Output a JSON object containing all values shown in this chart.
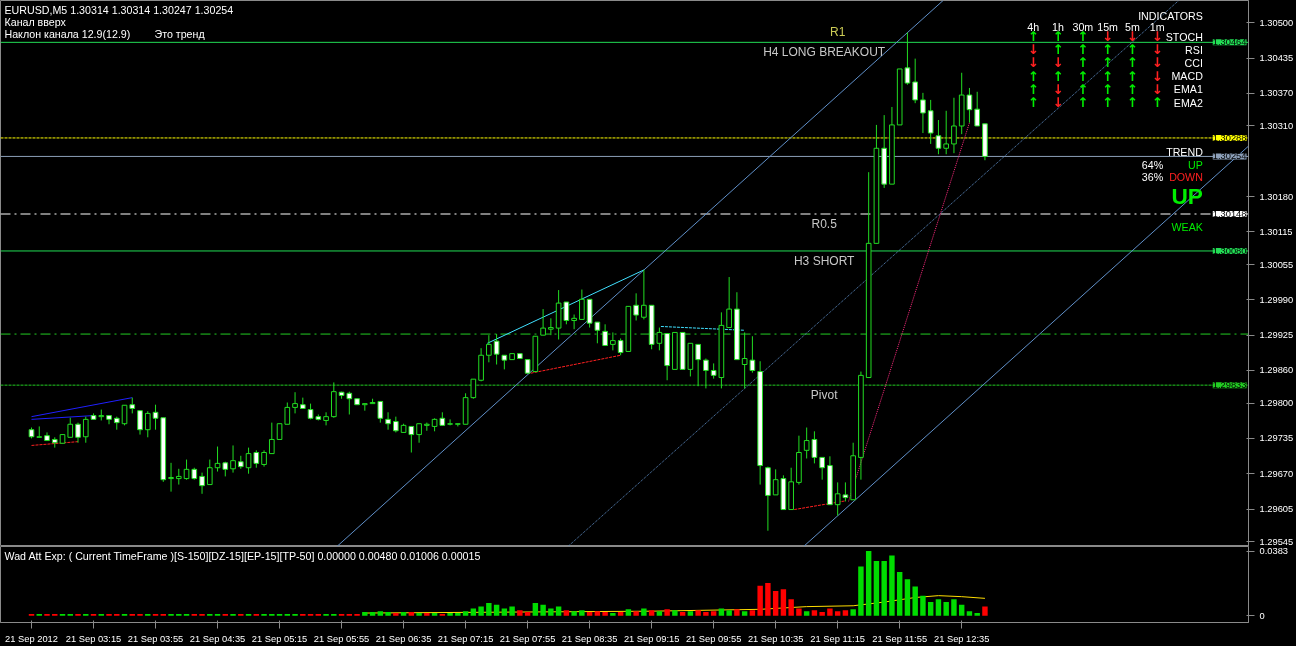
{
  "chart_data": [
    {
      "type": "candlestick",
      "title": "EURUSD,M5  1.30314 1.30314 1.30247 1.30254",
      "tick_labels": "y",
      "color": "#22dd22",
      "xlim": [
        "2012-09-21T02:15",
        "2012-09-21T15:40"
      ],
      "ylim": [
        1.29536,
        1.30541
      ],
      "yticks": [
        {
          "value": 1.305,
          "label": "1.30500"
        },
        1.30435,
        {
          "value": 1.3037,
          "label": "1.30370"
        },
        {
          "value": 1.3031,
          "label": "1.30310"
        },
        {
          "value": 1.3018,
          "label": "1.30180"
        },
        1.30115,
        1.30055,
        {
          "value": 1.2999,
          "label": "1.29990"
        },
        1.29925,
        {
          "value": 1.2986,
          "label": "1.29860"
        },
        {
          "value": 1.298,
          "label": "1.29800"
        },
        1.29735,
        {
          "value": 1.2967,
          "label": "1.29670"
        },
        1.29605,
        1.29545
      ],
      "x": [
        "2012-09-21T02:35",
        "2012-09-21T02:40",
        "2012-09-21T02:45",
        "2012-09-21T02:50",
        "2012-09-21T02:55",
        "2012-09-21T03:00",
        "2012-09-21T03:05",
        "2012-09-21T03:10",
        "2012-09-21T03:15",
        "2012-09-21T03:20",
        "2012-09-21T03:25",
        "2012-09-21T03:30",
        "2012-09-21T03:35",
        "2012-09-21T03:40",
        "2012-09-21T03:45",
        "2012-09-21T03:50",
        "2012-09-21T03:55",
        "2012-09-21T04:00",
        "2012-09-21T04:05",
        "2012-09-21T04:10",
        "2012-09-21T04:15",
        "2012-09-21T04:20",
        "2012-09-21T04:25",
        "2012-09-21T04:30",
        "2012-09-21T04:35",
        "2012-09-21T04:40",
        "2012-09-21T04:45",
        "2012-09-21T04:50",
        "2012-09-21T04:55",
        "2012-09-21T05:00",
        "2012-09-21T05:05",
        "2012-09-21T05:10",
        "2012-09-21T05:15",
        "2012-09-21T05:20",
        "2012-09-21T05:25",
        "2012-09-21T05:30",
        "2012-09-21T05:35",
        "2012-09-21T05:40",
        "2012-09-21T05:45",
        "2012-09-21T05:50",
        "2012-09-21T05:55",
        "2012-09-21T06:00",
        "2012-09-21T06:05",
        "2012-09-21T06:10",
        "2012-09-21T06:15",
        "2012-09-21T06:20",
        "2012-09-21T06:25",
        "2012-09-21T06:30",
        "2012-09-21T06:35",
        "2012-09-21T06:40",
        "2012-09-21T06:45",
        "2012-09-21T06:50",
        "2012-09-21T06:55",
        "2012-09-21T07:00",
        "2012-09-21T07:05",
        "2012-09-21T07:10",
        "2012-09-21T07:15",
        "2012-09-21T07:20",
        "2012-09-21T07:25",
        "2012-09-21T07:30",
        "2012-09-21T07:35",
        "2012-09-21T07:40",
        "2012-09-21T07:45",
        "2012-09-21T07:50",
        "2012-09-21T07:55",
        "2012-09-21T08:00",
        "2012-09-21T08:05",
        "2012-09-21T08:10",
        "2012-09-21T08:15",
        "2012-09-21T08:20",
        "2012-09-21T08:25",
        "2012-09-21T08:30",
        "2012-09-21T08:35",
        "2012-09-21T08:40",
        "2012-09-21T08:45",
        "2012-09-21T08:50",
        "2012-09-21T08:55",
        "2012-09-21T09:00",
        "2012-09-21T09:05",
        "2012-09-21T09:10",
        "2012-09-21T09:15",
        "2012-09-21T09:20",
        "2012-09-21T09:25",
        "2012-09-21T09:30",
        "2012-09-21T09:35",
        "2012-09-21T09:40",
        "2012-09-21T09:45",
        "2012-09-21T09:50",
        "2012-09-21T09:55",
        "2012-09-21T10:00",
        "2012-09-21T10:05",
        "2012-09-21T10:10",
        "2012-09-21T10:15",
        "2012-09-21T10:20",
        "2012-09-21T10:25",
        "2012-09-21T10:30",
        "2012-09-21T10:35",
        "2012-09-21T10:40",
        "2012-09-21T10:45",
        "2012-09-21T10:50",
        "2012-09-21T10:55",
        "2012-09-21T11:00",
        "2012-09-21T11:05",
        "2012-09-21T11:10",
        "2012-09-21T11:15",
        "2012-09-21T11:20",
        "2012-09-21T11:25",
        "2012-09-21T11:30",
        "2012-09-21T11:35",
        "2012-09-21T11:40",
        "2012-09-21T11:45",
        "2012-09-21T11:50",
        "2012-09-21T11:55",
        "2012-09-21T12:00",
        "2012-09-21T12:05",
        "2012-09-21T12:10",
        "2012-09-21T12:15",
        "2012-09-21T12:20",
        "2012-09-21T12:25",
        "2012-09-21T12:30",
        "2012-09-21T12:35",
        "2012-09-21T12:40",
        "2012-09-21T12:45",
        "2012-09-21T12:50"
      ],
      "ohlc": [
        [
          1.29751,
          1.29755,
          1.29735,
          1.29738
        ],
        [
          1.29737,
          1.29757,
          1.29737,
          1.29738
        ],
        [
          1.2974,
          1.29746,
          1.29731,
          1.29731
        ],
        [
          1.29733,
          1.29737,
          1.29718,
          1.29727
        ],
        [
          1.29726,
          1.29742,
          1.29726,
          1.29742
        ],
        [
          1.29737,
          1.29773,
          1.29737,
          1.29761
        ],
        [
          1.29761,
          1.29764,
          1.29727,
          1.29737
        ],
        [
          1.29738,
          1.29775,
          1.29727,
          1.2977
        ],
        [
          1.29777,
          1.29781,
          1.2977,
          1.2977
        ],
        [
          1.29775,
          1.29788,
          1.29768,
          1.29777
        ],
        [
          1.29777,
          1.29777,
          1.29761,
          1.2977
        ],
        [
          1.29772,
          1.29775,
          1.29751,
          1.29764
        ],
        [
          1.29762,
          1.29796,
          1.29759,
          1.29796
        ],
        [
          1.29797,
          1.2981,
          1.29781,
          1.2979
        ],
        [
          1.29786,
          1.29786,
          1.29742,
          1.29751
        ],
        [
          1.29751,
          1.29785,
          1.29737,
          1.29781
        ],
        [
          1.29783,
          1.29797,
          1.29751,
          1.29772
        ],
        [
          1.29773,
          1.29773,
          1.29655,
          1.29659
        ],
        [
          1.29661,
          1.2969,
          1.29637,
          1.29663
        ],
        [
          1.29661,
          1.29679,
          1.2965,
          1.29665
        ],
        [
          1.29661,
          1.29696,
          1.29659,
          1.29678
        ],
        [
          1.29678,
          1.29681,
          1.29659,
          1.29661
        ],
        [
          1.29665,
          1.29672,
          1.29633,
          1.29648
        ],
        [
          1.2965,
          1.29696,
          1.2965,
          1.29681
        ],
        [
          1.29681,
          1.2972,
          1.29674,
          1.29689
        ],
        [
          1.2969,
          1.29692,
          1.29665,
          1.29678
        ],
        [
          1.29679,
          1.29722,
          1.29672,
          1.29694
        ],
        [
          1.29692,
          1.29703,
          1.29679,
          1.29683
        ],
        [
          1.29681,
          1.29718,
          1.2967,
          1.29707
        ],
        [
          1.29709,
          1.29713,
          1.29681,
          1.29689
        ],
        [
          1.29687,
          1.29713,
          1.29683,
          1.29709
        ],
        [
          1.29707,
          1.29764,
          1.29707,
          1.29733
        ],
        [
          1.29733,
          1.29762,
          1.29733,
          1.29762
        ],
        [
          1.29761,
          1.29801,
          1.29761,
          1.29792
        ],
        [
          1.29792,
          1.2982,
          1.29781,
          1.29799
        ],
        [
          1.29797,
          1.2981,
          1.2979,
          1.2979
        ],
        [
          1.29788,
          1.29799,
          1.2977,
          1.29772
        ],
        [
          1.29775,
          1.29779,
          1.29768,
          1.2977
        ],
        [
          1.29768,
          1.29783,
          1.29759,
          1.29775
        ],
        [
          1.29775,
          1.29838,
          1.29773,
          1.29821
        ],
        [
          1.2982,
          1.29821,
          1.29808,
          1.29814
        ],
        [
          1.29818,
          1.29821,
          1.29779,
          1.29808
        ],
        [
          1.29808,
          1.29808,
          1.29797,
          1.29797
        ],
        [
          1.29797,
          1.29799,
          1.29786,
          1.29799
        ],
        [
          1.29799,
          1.29808,
          1.29799,
          1.29801
        ],
        [
          1.29803,
          1.29803,
          1.29764,
          1.29772
        ],
        [
          1.2977,
          1.29783,
          1.29751,
          1.29762
        ],
        [
          1.29766,
          1.29775,
          1.29746,
          1.29749
        ],
        [
          1.29746,
          1.29762,
          1.29746,
          1.29759
        ],
        [
          1.29757,
          1.29757,
          1.29709,
          1.29742
        ],
        [
          1.29742,
          1.29762,
          1.29727,
          1.29762
        ],
        [
          1.29759,
          1.29764,
          1.29749,
          1.29761
        ],
        [
          1.29757,
          1.29772,
          1.29748,
          1.2977
        ],
        [
          1.29772,
          1.29783,
          1.29759,
          1.29759
        ],
        [
          1.29761,
          1.2977,
          1.29759,
          1.29762
        ],
        [
          1.29761,
          1.29762,
          1.29757,
          1.29762
        ],
        [
          1.29761,
          1.29818,
          1.29761,
          1.2981
        ],
        [
          1.2981,
          1.29844,
          1.29808,
          1.29844
        ],
        [
          1.29842,
          1.29901,
          1.2984,
          1.29888
        ],
        [
          1.29888,
          1.29925,
          1.29875,
          1.29908
        ],
        [
          1.29914,
          1.29927,
          1.29871,
          1.2989
        ],
        [
          1.29888,
          1.29888,
          1.29862,
          1.29879
        ],
        [
          1.2988,
          1.29891,
          1.2988,
          1.29891
        ],
        [
          1.29891,
          1.29891,
          1.29882,
          1.29882
        ],
        [
          1.2988,
          1.2988,
          1.29855,
          1.29855
        ],
        [
          1.29858,
          1.29923,
          1.29858,
          1.29923
        ],
        [
          1.29925,
          1.29973,
          1.29925,
          1.29938
        ],
        [
          1.29936,
          1.29956,
          1.29925,
          1.29939
        ],
        [
          1.29938,
          1.30008,
          1.29917,
          1.29984
        ],
        [
          1.29986,
          1.29986,
          1.29945,
          1.29952
        ],
        [
          1.29952,
          1.29963,
          1.29936,
          1.29956
        ],
        [
          1.29954,
          1.30009,
          1.29954,
          1.29991
        ],
        [
          1.29991,
          1.29991,
          1.29939,
          1.29947
        ],
        [
          1.29949,
          1.29949,
          1.2991,
          1.29934
        ],
        [
          1.29932,
          1.29945,
          1.29906,
          1.29906
        ],
        [
          1.29908,
          1.2993,
          1.29897,
          1.29915
        ],
        [
          1.29915,
          1.29919,
          1.29888,
          1.29893
        ],
        [
          1.29895,
          1.29978,
          1.29895,
          1.29978
        ],
        [
          1.2998,
          1.30002,
          1.29952,
          1.29962
        ],
        [
          1.29958,
          1.30045,
          1.29954,
          1.2998
        ],
        [
          1.2998,
          1.2998,
          1.29899,
          1.29908
        ],
        [
          1.2991,
          1.29939,
          1.29897,
          1.2993
        ],
        [
          1.29928,
          1.29928,
          1.29842,
          1.29869
        ],
        [
          1.29862,
          1.2993,
          1.29862,
          1.2993
        ],
        [
          1.2993,
          1.2993,
          1.29862,
          1.29862
        ],
        [
          1.29862,
          1.2991,
          1.29849,
          1.2991
        ],
        [
          1.29908,
          1.29908,
          1.29831,
          1.2988
        ],
        [
          1.29879,
          1.29882,
          1.29827,
          1.2986
        ],
        [
          1.2986,
          1.29873,
          1.29845,
          1.29851
        ],
        [
          1.29847,
          1.29967,
          1.29827,
          1.29943
        ],
        [
          1.29939,
          1.30032,
          1.29939,
          1.29973
        ],
        [
          1.29973,
          1.30004,
          1.2988,
          1.2988
        ],
        [
          1.29871,
          1.2993,
          1.29827,
          1.29882
        ],
        [
          1.29879,
          1.29923,
          1.29856,
          1.2986
        ],
        [
          1.29858,
          1.29877,
          1.2965,
          1.29685
        ],
        [
          1.29681,
          1.29683,
          1.29565,
          1.2963
        ],
        [
          1.29631,
          1.29678,
          1.29631,
          1.29659
        ],
        [
          1.29661,
          1.29667,
          1.29604,
          1.29604
        ],
        [
          1.29604,
          1.29681,
          1.29604,
          1.29655
        ],
        [
          1.29654,
          1.2974,
          1.2965,
          1.29709
        ],
        [
          1.29713,
          1.29755,
          1.29698,
          1.29731
        ],
        [
          1.29733,
          1.29748,
          1.29689,
          1.297
        ],
        [
          1.297,
          1.297,
          1.29659,
          1.29681
        ],
        [
          1.29685,
          1.29702,
          1.29613,
          1.29613
        ],
        [
          1.29613,
          1.29654,
          1.29593,
          1.29633
        ],
        [
          1.29631,
          1.29654,
          1.29619,
          1.29626
        ],
        [
          1.29622,
          1.29727,
          1.29622,
          1.29703
        ],
        [
          1.297,
          1.29858,
          1.29659,
          1.29851
        ],
        [
          1.29847,
          1.30225,
          1.29847,
          1.30094
        ],
        [
          1.30094,
          1.30312,
          1.30094,
          1.30269
        ],
        [
          1.30269,
          1.3033,
          1.30196,
          1.30203
        ],
        [
          1.30203,
          1.30345,
          1.30203,
          1.30312
        ],
        [
          1.30312,
          1.30415,
          1.30312,
          1.30415
        ],
        [
          1.30417,
          1.30482,
          1.30386,
          1.30389
        ],
        [
          1.30391,
          1.30434,
          1.30352,
          1.30358
        ],
        [
          1.30358,
          1.30371,
          1.30297,
          1.30334
        ],
        [
          1.30338,
          1.30358,
          1.30277,
          1.30297
        ],
        [
          1.30292,
          1.30321,
          1.30258,
          1.30269
        ],
        [
          1.30269,
          1.30338,
          1.30258,
          1.30277
        ],
        [
          1.30277,
          1.30362,
          1.3026,
          1.3031
        ],
        [
          1.3031,
          1.30408,
          1.30295,
          1.30367
        ],
        [
          1.30367,
          1.3038,
          1.30316,
          1.3034
        ],
        [
          1.30341,
          1.30373,
          1.3031,
          1.3031
        ],
        [
          1.30314,
          1.30314,
          1.30247,
          1.30254
        ]
      ],
      "series": [
        {
          "type": "line",
          "color": "#5f8fc8",
          "line_style": "solid",
          "x": [
            "2012-09-21T05:52",
            "2012-09-21T12:23"
          ],
          "values": [
            1.29536,
            1.30541
          ]
        },
        {
          "type": "line",
          "color": "#5f8fc8",
          "line_style": "dotted",
          "x": [
            "2012-09-21T08:21",
            "2012-09-21T14:55"
          ],
          "values": [
            1.29536,
            1.30541
          ]
        },
        {
          "type": "line",
          "color": "#5f8fc8",
          "line_style": "solid",
          "x": [
            "2012-09-21T10:53",
            "2012-09-21T15:40"
          ],
          "values": [
            1.29536,
            1.30273
          ]
        },
        {
          "type": "line",
          "color": "#2020ff",
          "line_style": "solid",
          "x": [
            "2012-09-21T02:35",
            "2012-09-21T03:40"
          ],
          "values": [
            1.29775,
            1.2981
          ]
        },
        {
          "type": "line",
          "color": "#2020ff",
          "line_style": "solid",
          "x": [
            "2012-09-21T02:35",
            "2012-09-21T03:15"
          ],
          "values": [
            1.2977,
            1.29777
          ]
        },
        {
          "type": "line",
          "color": "#ff2020",
          "line_style": "dashed",
          "x": [
            "2012-09-21T02:35",
            "2012-09-21T03:05"
          ],
          "values": [
            1.29722,
            1.29729
          ]
        },
        {
          "type": "line",
          "color": "#ff2020",
          "line_style": "dashed",
          "x": [
            "2012-09-21T07:57",
            "2012-09-21T08:55"
          ],
          "values": [
            1.29855,
            1.29888
          ]
        },
        {
          "type": "line",
          "color": "#ff2020",
          "line_style": "dashed",
          "x": [
            "2012-09-21T10:47",
            "2012-09-21T11:20"
          ],
          "values": [
            1.29604,
            1.2962
          ]
        },
        {
          "type": "line",
          "color": "#ff2a7f",
          "line_style": "dotted",
          "x": [
            "2012-09-21T11:22",
            "2012-09-21T12:40"
          ],
          "values": [
            1.29619,
            1.30316
          ]
        },
        {
          "type": "line",
          "color": "#40e0ff",
          "line_style": "solid",
          "x": [
            "2012-09-21T07:29",
            "2012-09-21T09:10"
          ],
          "values": [
            1.2991,
            1.30045
          ]
        },
        {
          "type": "line",
          "color": "#40e0ff",
          "line_style": "dashed",
          "x": [
            "2012-09-21T09:21",
            "2012-09-21T10:15"
          ],
          "values": [
            1.29941,
            1.29934
          ]
        }
      ],
      "ref_lines": [
        {
          "axis": "y",
          "value": 1.30464,
          "label": "H4 LONG BREAKOUT",
          "color": "#22dd55",
          "line_style": "solid"
        },
        {
          "axis": "y",
          "value": 1.30288,
          "color": "#ffff00",
          "line_style": "dashed"
        },
        {
          "axis": "y",
          "value": 1.30254,
          "color": "#8c9fb8",
          "line_style": "solid"
        },
        {
          "axis": "y",
          "value": 1.30148,
          "label": "R0.5",
          "color": "#ffffff",
          "line_style": "dashdot"
        },
        {
          "axis": "y",
          "value": 1.3008,
          "label": "H3 SHORT",
          "color": "#22dd55",
          "line_style": "solid"
        },
        {
          "axis": "y",
          "value": 1.29927,
          "color": "#22cc22",
          "line_style": "dashdot"
        },
        {
          "axis": "y",
          "value": 1.29833,
          "label": "Pivot",
          "color": "#22cc22",
          "line_style": "dashed"
        }
      ],
      "annotations": [
        "Канал вверх",
        "Наклон канала 12.9(12.9)",
        "Это тренд",
        {
          "text": "R1",
          "x": "2012-09-21T11:15",
          "y": 1.30464
        },
        {
          "text": "1.30464",
          "y": 1.30464
        },
        {
          "text": "1.30288",
          "y": 1.30288
        },
        {
          "text": "1.30254",
          "y": 1.30254
        },
        {
          "text": "1.30148",
          "y": 1.30148
        },
        {
          "text": "1.30080",
          "y": 1.3008
        },
        {
          "text": "1.29833",
          "y": 1.29833
        }
      ]
    },
    {
      "type": "other",
      "title": "INDICATORS",
      "categories": [
        "4h",
        "1h",
        "30m",
        "15m",
        "5m",
        "1m"
      ],
      "y_categories": [
        "STOCH",
        "RSI",
        "CCI",
        "MACD",
        "EMA1",
        "EMA2"
      ],
      "annotations": [
        "↑",
        "↑",
        "↑",
        "↓",
        "↓",
        "↓",
        "↓",
        "↑",
        "↑",
        "↑",
        "↑",
        "↓",
        "↓",
        "↓",
        "↑",
        "↑",
        "↑",
        "↓",
        "↑",
        "↑",
        "↑",
        "↑",
        "↑",
        "↓",
        "↑",
        "↓",
        "↑",
        "↑",
        "↑",
        "↓",
        "↑",
        "↓",
        "↑",
        "↑",
        "↑",
        "↑"
      ],
      "colors": [
        "#00ee00",
        "#00ee00",
        "#00ee00",
        "#ff2020",
        "#ff2020",
        "#ff2020",
        "#ff2020",
        "#00ee00",
        "#00ee00",
        "#00ee00",
        "#00ee00",
        "#ff2020",
        "#ff2020",
        "#ff2020",
        "#00ee00",
        "#00ee00",
        "#00ee00",
        "#ff2020",
        "#00ee00",
        "#00ee00",
        "#00ee00",
        "#00ee00",
        "#00ee00",
        "#ff2020",
        "#00ee00",
        "#ff2020",
        "#00ee00",
        "#00ee00",
        "#00ee00",
        "#ff2020",
        "#00ee00",
        "#ff2020",
        "#00ee00",
        "#00ee00",
        "#00ee00",
        "#00ee00"
      ]
    },
    {
      "type": "other",
      "title": "TREND",
      "annotations": [
        "64%",
        "UP",
        "36%",
        "DOWN",
        "UP",
        "WEAK"
      ]
    },
    {
      "type": "bar",
      "title": "Wad Att Exp: ( Current TimeFrame )[S-150][DZ-15][EP-15][TP-50] 0.00000 0.00480 0.01006 0.00015",
      "xlim": [
        "2012-09-21T02:15",
        "2012-09-21T15:40"
      ],
      "ylim": [
        -0.004,
        0.041
      ],
      "yticks": [
        0.0383,
        0
      ],
      "xticks": [
        {
          "value": "2012-09-21T02:35",
          "label": "21 Sep 2012"
        },
        {
          "value": "2012-09-21T03:15",
          "label": "21 Sep 03:15"
        },
        {
          "value": "2012-09-21T03:55",
          "label": "21 Sep 03:55"
        },
        {
          "value": "2012-09-21T04:35",
          "label": "21 Sep 04:35"
        },
        {
          "value": "2012-09-21T05:15",
          "label": "21 Sep 05:15"
        },
        {
          "value": "2012-09-21T05:55",
          "label": "21 Sep 05:55"
        },
        {
          "value": "2012-09-21T06:35",
          "label": "21 Sep 06:35"
        },
        {
          "value": "2012-09-21T07:15",
          "label": "21 Sep 07:15"
        },
        {
          "value": "2012-09-21T07:55",
          "label": "21 Sep 07:55"
        },
        {
          "value": "2012-09-21T08:35",
          "label": "21 Sep 08:35"
        },
        {
          "value": "2012-09-21T09:15",
          "label": "21 Sep 09:15"
        },
        {
          "value": "2012-09-21T09:55",
          "label": "21 Sep 09:55"
        },
        {
          "value": "2012-09-21T10:35",
          "label": "21 Sep 10:35"
        },
        {
          "value": "2012-09-21T11:15",
          "label": "21 Sep 11:15"
        },
        {
          "value": "2012-09-21T11:55",
          "label": "21 Sep 11:55"
        },
        {
          "value": "2012-09-21T12:35",
          "label": "21 Sep 12:35"
        }
      ],
      "x": [
        "2012-09-21T02:35",
        "2012-09-21T02:40",
        "2012-09-21T02:45",
        "2012-09-21T02:50",
        "2012-09-21T02:55",
        "2012-09-21T03:00",
        "2012-09-21T03:05",
        "2012-09-21T03:10",
        "2012-09-21T03:15",
        "2012-09-21T03:20",
        "2012-09-21T03:25",
        "2012-09-21T03:30",
        "2012-09-21T03:35",
        "2012-09-21T03:40",
        "2012-09-21T03:45",
        "2012-09-21T03:50",
        "2012-09-21T03:55",
        "2012-09-21T04:00",
        "2012-09-21T04:05",
        "2012-09-21T04:10",
        "2012-09-21T04:15",
        "2012-09-21T04:20",
        "2012-09-21T04:25",
        "2012-09-21T04:30",
        "2012-09-21T04:35",
        "2012-09-21T04:40",
        "2012-09-21T04:45",
        "2012-09-21T04:50",
        "2012-09-21T04:55",
        "2012-09-21T05:00",
        "2012-09-21T05:05",
        "2012-09-21T05:10",
        "2012-09-21T05:15",
        "2012-09-21T05:20",
        "2012-09-21T05:25",
        "2012-09-21T05:30",
        "2012-09-21T05:35",
        "2012-09-21T05:40",
        "2012-09-21T05:45",
        "2012-09-21T05:50",
        "2012-09-21T05:55",
        "2012-09-21T06:00",
        "2012-09-21T06:05",
        "2012-09-21T06:10",
        "2012-09-21T06:15",
        "2012-09-21T06:20",
        "2012-09-21T06:25",
        "2012-09-21T06:30",
        "2012-09-21T06:35",
        "2012-09-21T06:40",
        "2012-09-21T06:45",
        "2012-09-21T06:50",
        "2012-09-21T06:55",
        "2012-09-21T07:00",
        "2012-09-21T07:05",
        "2012-09-21T07:10",
        "2012-09-21T07:15",
        "2012-09-21T07:20",
        "2012-09-21T07:25",
        "2012-09-21T07:30",
        "2012-09-21T07:35",
        "2012-09-21T07:40",
        "2012-09-21T07:45",
        "2012-09-21T07:50",
        "2012-09-21T07:55",
        "2012-09-21T08:00",
        "2012-09-21T08:05",
        "2012-09-21T08:10",
        "2012-09-21T08:15",
        "2012-09-21T08:20",
        "2012-09-21T08:25",
        "2012-09-21T08:30",
        "2012-09-21T08:35",
        "2012-09-21T08:40",
        "2012-09-21T08:45",
        "2012-09-21T08:50",
        "2012-09-21T08:55",
        "2012-09-21T09:00",
        "2012-09-21T09:05",
        "2012-09-21T09:10",
        "2012-09-21T09:15",
        "2012-09-21T09:20",
        "2012-09-21T09:25",
        "2012-09-21T09:30",
        "2012-09-21T09:35",
        "2012-09-21T09:40",
        "2012-09-21T09:45",
        "2012-09-21T09:50",
        "2012-09-21T09:55",
        "2012-09-21T10:00",
        "2012-09-21T10:05",
        "2012-09-21T10:10",
        "2012-09-21T10:15",
        "2012-09-21T10:20",
        "2012-09-21T10:25",
        "2012-09-21T10:30",
        "2012-09-21T10:35",
        "2012-09-21T10:40",
        "2012-09-21T10:45",
        "2012-09-21T10:50",
        "2012-09-21T10:55",
        "2012-09-21T11:00",
        "2012-09-21T11:05",
        "2012-09-21T11:10",
        "2012-09-21T11:15",
        "2012-09-21T11:20",
        "2012-09-21T11:25",
        "2012-09-21T11:30",
        "2012-09-21T11:35",
        "2012-09-21T11:40",
        "2012-09-21T11:45",
        "2012-09-21T11:50",
        "2012-09-21T11:55",
        "2012-09-21T12:00",
        "2012-09-21T12:05",
        "2012-09-21T12:10",
        "2012-09-21T12:15",
        "2012-09-21T12:20",
        "2012-09-21T12:25",
        "2012-09-21T12:30",
        "2012-09-21T12:35",
        "2012-09-21T12:40",
        "2012-09-21T12:45",
        "2012-09-21T12:50"
      ],
      "values": [
        0.0011,
        0.0011,
        0.0011,
        0.0011,
        0.0011,
        0.0011,
        0.0011,
        0.0011,
        0.0011,
        0.0011,
        0.0011,
        0.0011,
        0.0011,
        0.0011,
        0.0011,
        0.0011,
        0.0011,
        0.0011,
        0.0011,
        0.0011,
        0.0011,
        0.0011,
        0.0011,
        0.0011,
        0.0011,
        0.0011,
        0.0011,
        0.0011,
        0.0011,
        0.0011,
        0.0011,
        0.0011,
        0.0011,
        0.0011,
        0.0011,
        0.0011,
        0.0011,
        0.0011,
        0.0011,
        0.0011,
        0.0011,
        0.0011,
        0.0011,
        0.0022,
        0.0022,
        0.0027,
        0.0022,
        0.0016,
        0.0022,
        0.0022,
        0.0016,
        0.0016,
        0.0016,
        0.0011,
        0.0016,
        0.0016,
        0.0027,
        0.0043,
        0.0054,
        0.0076,
        0.0065,
        0.0043,
        0.0054,
        0.0032,
        0.0022,
        0.0076,
        0.0065,
        0.0043,
        0.0054,
        0.0032,
        0.0027,
        0.0032,
        0.0022,
        0.0027,
        0.0022,
        0.0016,
        0.0022,
        0.0038,
        0.0027,
        0.0043,
        0.0032,
        0.0027,
        0.0038,
        0.0032,
        0.0022,
        0.0027,
        0.0032,
        0.0022,
        0.0027,
        0.0043,
        0.0032,
        0.0038,
        0.0027,
        0.0032,
        0.0178,
        0.0194,
        0.0146,
        0.0157,
        0.0097,
        0.0043,
        0.0027,
        0.0032,
        0.0022,
        0.0043,
        0.0027,
        0.0032,
        0.0038,
        0.0292,
        0.0383,
        0.0324,
        0.0324,
        0.0356,
        0.0259,
        0.0216,
        0.0173,
        0.0119,
        0.0081,
        0.0097,
        0.0081,
        0.0097,
        0.0065,
        0.0027,
        0.0016,
        0.0054
      ],
      "colors": [
        "#ff0000",
        "#00dd00",
        "#ff0000",
        "#ff0000",
        "#00dd00",
        "#00dd00",
        "#ff0000",
        "#00dd00",
        "#ff0000",
        "#00dd00",
        "#ff0000",
        "#ff0000",
        "#00dd00",
        "#ff0000",
        "#ff0000",
        "#00dd00",
        "#ff0000",
        "#ff0000",
        "#00dd00",
        "#00dd00",
        "#00dd00",
        "#ff0000",
        "#ff0000",
        "#00dd00",
        "#00dd00",
        "#ff0000",
        "#00dd00",
        "#ff0000",
        "#00dd00",
        "#ff0000",
        "#00dd00",
        "#00dd00",
        "#00dd00",
        "#00dd00",
        "#00dd00",
        "#ff0000",
        "#ff0000",
        "#ff0000",
        "#00dd00",
        "#00dd00",
        "#ff0000",
        "#ff0000",
        "#ff0000",
        "#00dd00",
        "#00dd00",
        "#00dd00",
        "#00dd00",
        "#ff0000",
        "#00dd00",
        "#ff0000",
        "#00dd00",
        "#ff0000",
        "#00dd00",
        "#ff0000",
        "#00dd00",
        "#00dd00",
        "#00dd00",
        "#00dd00",
        "#00dd00",
        "#00dd00",
        "#00dd00",
        "#00dd00",
        "#00dd00",
        "#ff0000",
        "#ff0000",
        "#00dd00",
        "#00dd00",
        "#00dd00",
        "#00dd00",
        "#ff0000",
        "#00dd00",
        "#00dd00",
        "#ff0000",
        "#ff0000",
        "#ff0000",
        "#00dd00",
        "#ff0000",
        "#00dd00",
        "#ff0000",
        "#00dd00",
        "#ff0000",
        "#00dd00",
        "#ff0000",
        "#00dd00",
        "#ff0000",
        "#00dd00",
        "#ff0000",
        "#ff0000",
        "#ff0000",
        "#00dd00",
        "#00dd00",
        "#ff0000",
        "#00dd00",
        "#ff0000",
        "#ff0000",
        "#ff0000",
        "#ff0000",
        "#ff0000",
        "#ff0000",
        "#ff0000",
        "#00dd00",
        "#ff0000",
        "#ff0000",
        "#ff0000",
        "#ff0000",
        "#ff0000",
        "#00dd00",
        "#00dd00",
        "#00dd00",
        "#00dd00",
        "#00dd00",
        "#00dd00",
        "#00dd00",
        "#00dd00",
        "#00dd00",
        "#00dd00",
        "#00dd00",
        "#00dd00",
        "#00dd00",
        "#00dd00",
        "#00dd00",
        "#00dd00",
        "#00dd00",
        "#ff0000"
      ],
      "series": [
        {
          "type": "line",
          "color": "#ffdd00",
          "line_style": "solid",
          "x": [
            "2012-09-21T06:10",
            "2012-09-21T09:15",
            "2012-09-21T10:25",
            "2012-09-21T10:55",
            "2012-09-21T11:25",
            "2012-09-21T11:45",
            "2012-09-21T12:05",
            "2012-09-21T12:20",
            "2012-09-21T12:35",
            "2012-09-21T12:50"
          ],
          "values": [
            0.0016,
            0.0027,
            0.0038,
            0.0054,
            0.0059,
            0.0081,
            0.0108,
            0.0119,
            0.0113,
            0.0103
          ]
        }
      ]
    }
  ]
}
